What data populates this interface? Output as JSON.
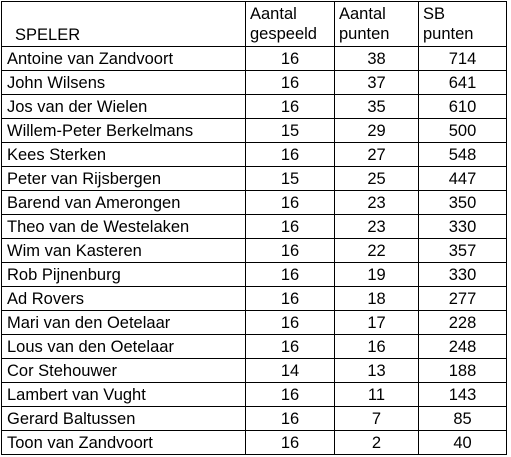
{
  "table": {
    "headers": {
      "speler": "SPELER",
      "aantal_gespeeld_line1": "Aantal",
      "aantal_gespeeld_line2": "gespeeld",
      "aantal_punten_line1": "Aantal",
      "aantal_punten_line2": "punten",
      "sb_punten_line1": "SB",
      "sb_punten_line2": "punten"
    },
    "rows": [
      {
        "name": "Antoine van Zandvoort",
        "played": "16",
        "points": "38",
        "sb": "714"
      },
      {
        "name": "John Wilsens",
        "played": "16",
        "points": "37",
        "sb": "641"
      },
      {
        "name": "Jos van der Wielen",
        "played": "16",
        "points": "35",
        "sb": "610"
      },
      {
        "name": "Willem-Peter Berkelmans",
        "played": "15",
        "points": "29",
        "sb": "500"
      },
      {
        "name": "Kees Sterken",
        "played": "16",
        "points": "27",
        "sb": "548"
      },
      {
        "name": "Peter van Rijsbergen",
        "played": "15",
        "points": "25",
        "sb": "447"
      },
      {
        "name": "Barend van Amerongen",
        "played": "16",
        "points": "23",
        "sb": "350"
      },
      {
        "name": "Theo van de Westelaken",
        "played": "16",
        "points": "23",
        "sb": "330"
      },
      {
        "name": "Wim van Kasteren",
        "played": "16",
        "points": "22",
        "sb": "357"
      },
      {
        "name": "Rob Pijnenburg",
        "played": "16",
        "points": "19",
        "sb": "330"
      },
      {
        "name": "Ad Rovers",
        "played": "16",
        "points": "18",
        "sb": "277"
      },
      {
        "name": "Mari van den Oetelaar",
        "played": "16",
        "points": "17",
        "sb": "228"
      },
      {
        "name": "Lous van den Oetelaar",
        "played": "16",
        "points": "16",
        "sb": "248"
      },
      {
        "name": "Cor Stehouwer",
        "played": "14",
        "points": "13",
        "sb": "188"
      },
      {
        "name": "Lambert van Vught",
        "played": "16",
        "points": "11",
        "sb": "143"
      },
      {
        "name": "Gerard Baltussen",
        "played": "16",
        "points": "7",
        "sb": "85"
      },
      {
        "name": "Toon van Zandvoort",
        "played": "16",
        "points": "2",
        "sb": "40"
      }
    ]
  }
}
